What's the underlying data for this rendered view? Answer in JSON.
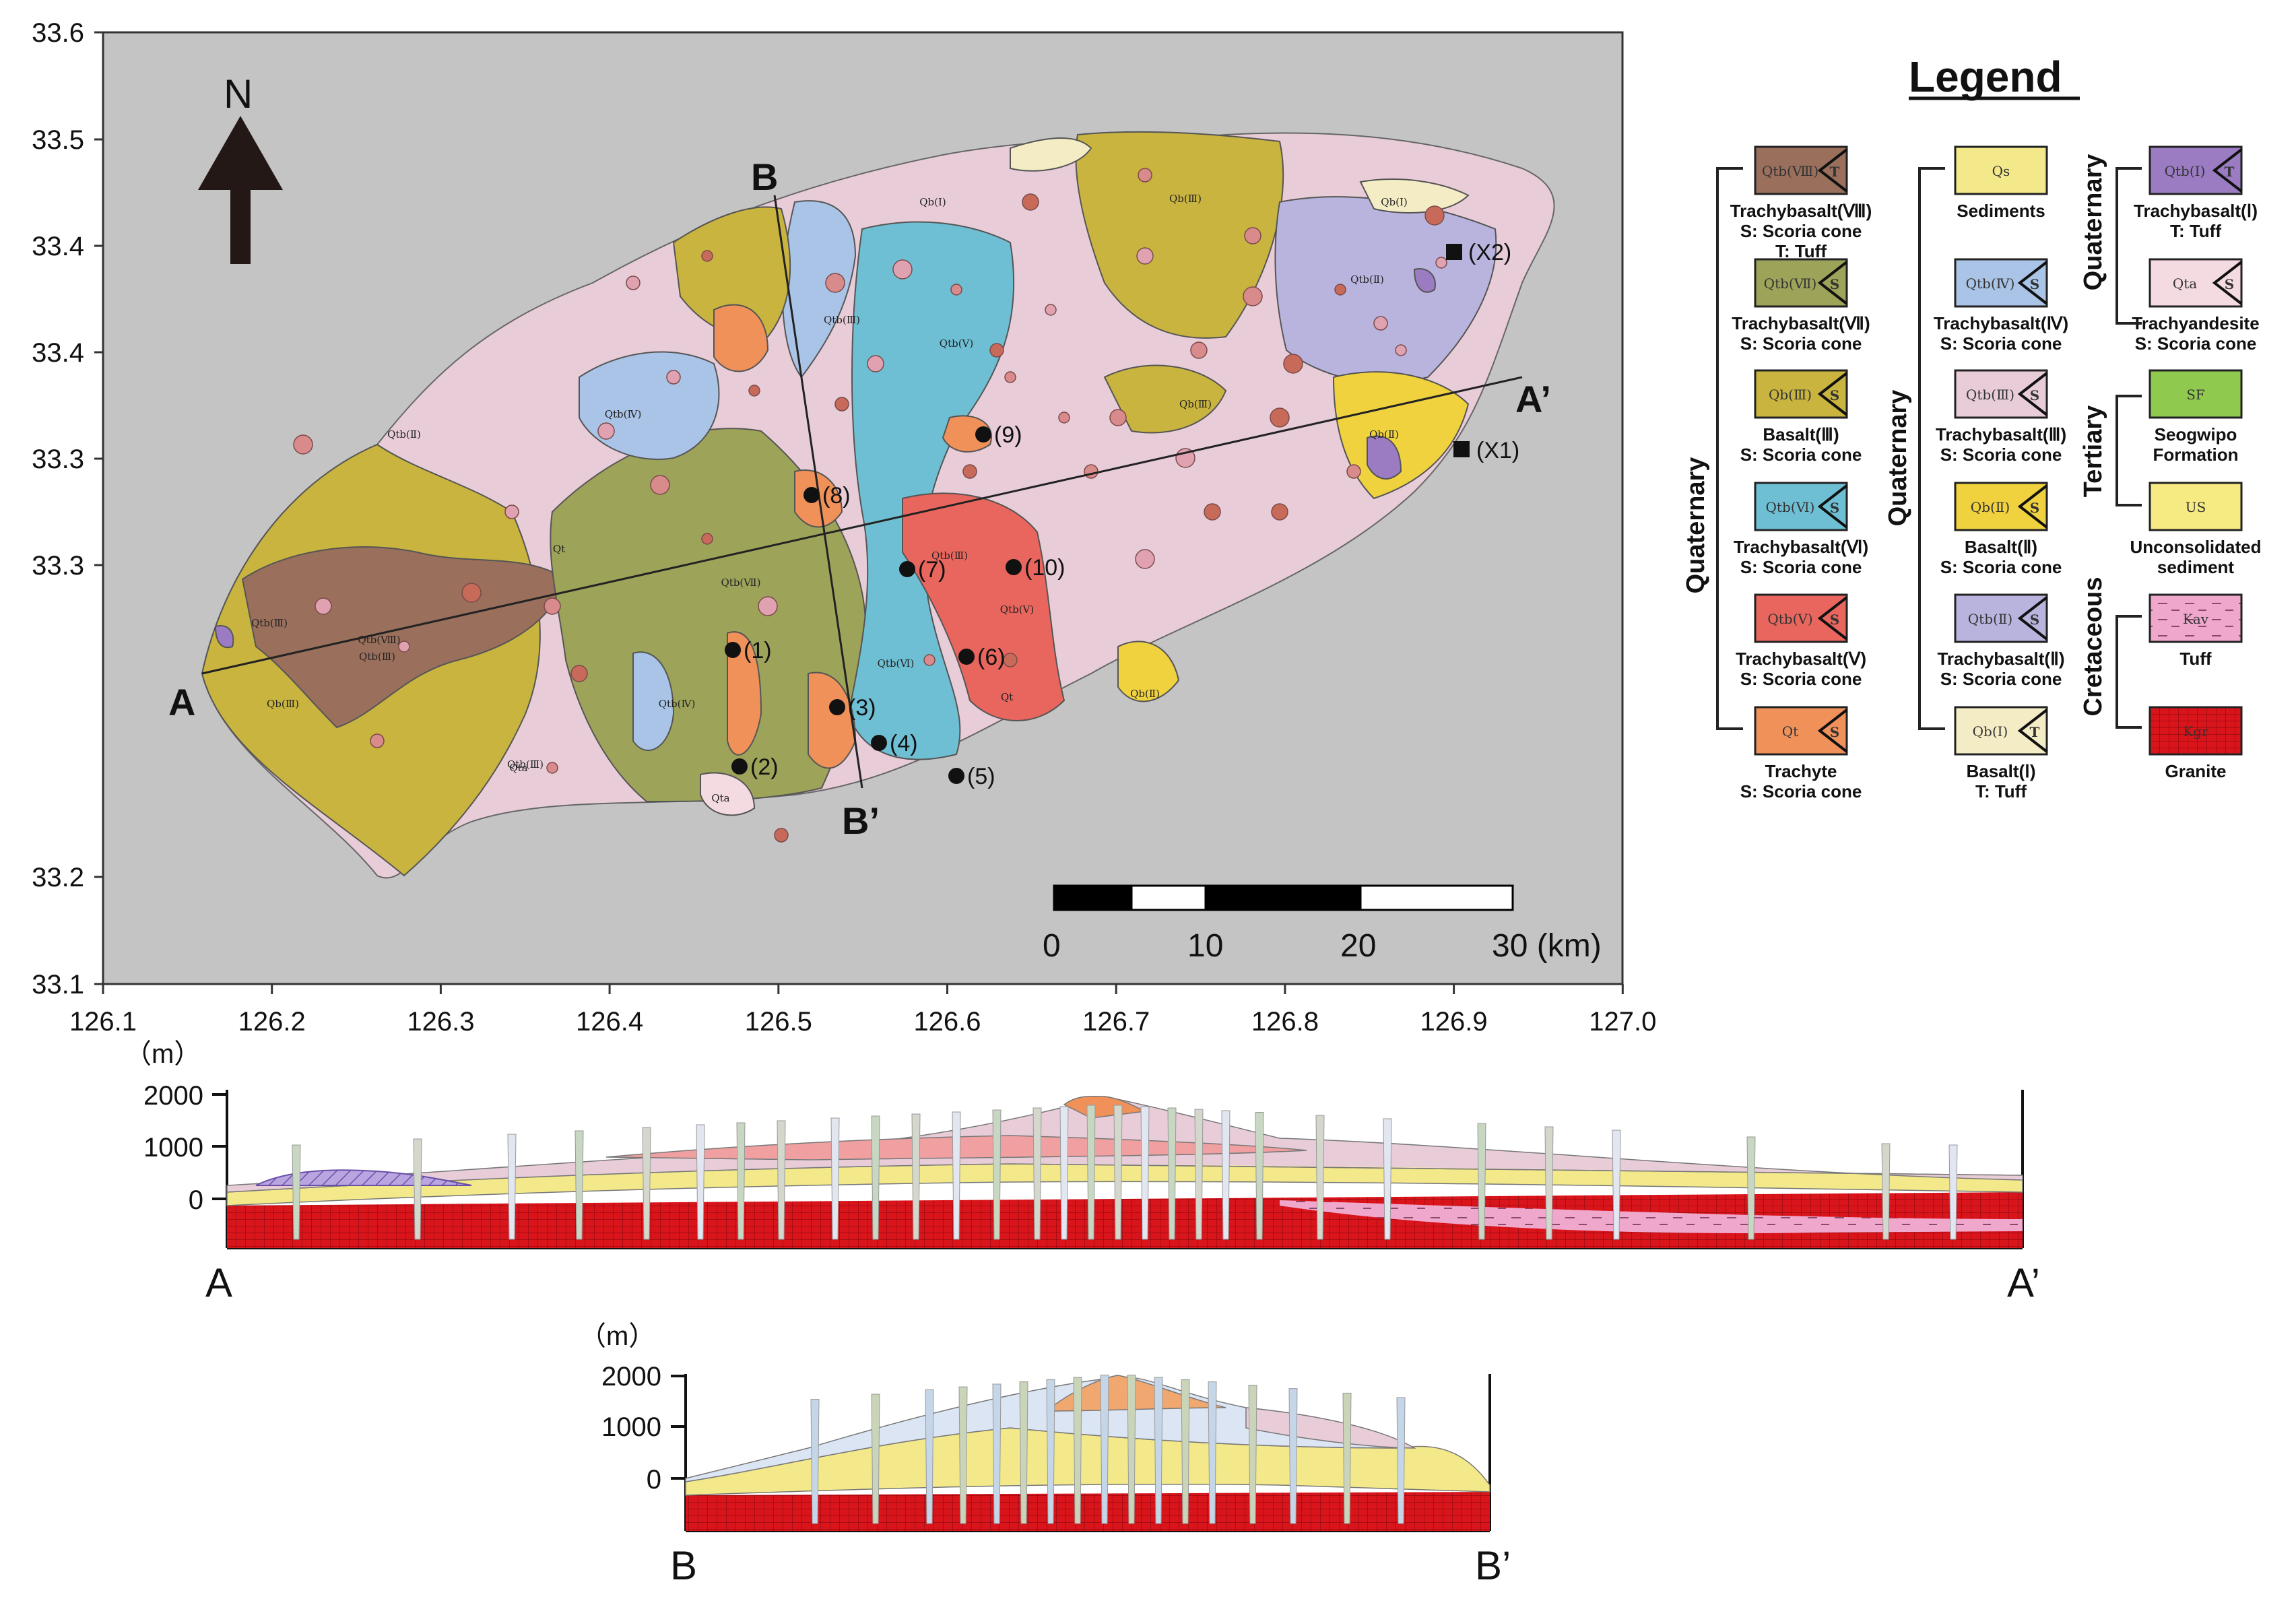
{
  "map": {
    "x_ticks": [
      "126.1",
      "126.2",
      "126.3",
      "126.4",
      "126.5",
      "126.6",
      "126.7",
      "126.8",
      "126.9",
      "127.0"
    ],
    "y_ticks": [
      "33.6",
      "33.5",
      "33.4",
      "33.4",
      "33.3",
      "33.3",
      "33.2",
      "33.1"
    ],
    "north_label": "N",
    "section_a": "A",
    "section_a_prime": "A’",
    "section_b": "B",
    "section_b_prime": "B’",
    "scale_labels": [
      "0",
      "10",
      "20",
      "30 (km)"
    ],
    "sample_points": [
      "(1)",
      "(2)",
      "(3)",
      "(4)",
      "(5)",
      "(6)",
      "(7)",
      "(8)",
      "(9)",
      "(10)"
    ],
    "stations": [
      "(X1)",
      "(X2)"
    ],
    "unit_labels": [
      "Qtb(Ⅷ)",
      "Qtb(Ⅲ)",
      "Qtb(Ⅲ)",
      "Qb(Ⅲ)",
      "Qtb(Ⅲ)",
      "Qb(Ⅲ)",
      "Qt",
      "Qtb(Ⅵ)",
      "Qtb(Ⅴ)",
      "Qtb(Ⅶ)",
      "Qtb(Ⅲ)",
      "Qtb(Ⅱ)",
      "Qb(Ⅱ)",
      "Qb(Ⅱ)",
      "Qtb(Ⅲ)",
      "Qta",
      "Qb(Ⅰ)",
      "Qb(Ⅰ)",
      "Qb(Ⅲ)",
      "Qtb(Ⅳ)",
      "Qtb(Ⅱ)",
      "Qtb(Ⅴ)",
      "Qtb(Ⅳ)",
      "Qta",
      "Qt"
    ]
  },
  "sections": {
    "unit": "（m）",
    "y_ticks": [
      "2000",
      "1000",
      "0"
    ],
    "aa_left": "A",
    "aa_right": "A’",
    "bb_left": "B",
    "bb_right": "B’"
  },
  "legend": {
    "title": "Legend",
    "groups": {
      "quaternary_left": "Quaternary",
      "quaternary_mid": "Quaternary",
      "quaternary_right": "Quaternary",
      "tertiary": "Tertiary",
      "cretaceous": "Cretaceous"
    },
    "items": [
      {
        "code": "Qtb(Ⅷ)",
        "line1": "Trachybasalt(Ⅷ)",
        "line2": "S: Scoria cone",
        "line3": "T: Tuff",
        "color": "#9a6f5c",
        "marker": "T"
      },
      {
        "code": "Qtb(Ⅶ)",
        "line1": "Trachybasalt(Ⅶ)",
        "line2": "S: Scoria cone",
        "line3": "",
        "color": "#9ea35a",
        "marker": "S"
      },
      {
        "code": "Qb(Ⅲ)",
        "line1": "Basalt(Ⅲ)",
        "line2": "S: Scoria cone",
        "line3": "",
        "color": "#c9b43f",
        "marker": "S"
      },
      {
        "code": "Qtb(Ⅵ)",
        "line1": "Trachybasalt(Ⅵ)",
        "line2": "S: Scoria cone",
        "line3": "",
        "color": "#6fbfd4",
        "marker": "S"
      },
      {
        "code": "Qtb(Ⅴ)",
        "line1": "Trachybasalt(Ⅴ)",
        "line2": "S: Scoria cone",
        "line3": "",
        "color": "#e8665d",
        "marker": "S"
      },
      {
        "code": "Qt",
        "line1": "Trachyte",
        "line2": "S: Scoria cone",
        "line3": "",
        "color": "#f0915a",
        "marker": "S"
      },
      {
        "code": "Qs",
        "line1": "Sediments",
        "line2": "",
        "line3": "",
        "color": "#f3e98a",
        "marker": ""
      },
      {
        "code": "Qtb(Ⅳ)",
        "line1": "Trachybasalt(Ⅳ)",
        "line2": "S: Scoria cone",
        "line3": "",
        "color": "#a9c4e6",
        "marker": "S"
      },
      {
        "code": "Qtb(Ⅲ)",
        "line1": "Trachybasalt(Ⅲ)",
        "line2": "S: Scoria cone",
        "line3": "",
        "color": "#e8cdd9",
        "marker": "S"
      },
      {
        "code": "Qb(Ⅱ)",
        "line1": "Basalt(Ⅱ)",
        "line2": "S: Scoria cone",
        "line3": "",
        "color": "#f0d23f",
        "marker": "S"
      },
      {
        "code": "Qtb(Ⅱ)",
        "line1": "Trachybasalt(Ⅱ)",
        "line2": "S: Scoria cone",
        "line3": "",
        "color": "#b9b4de",
        "marker": "S"
      },
      {
        "code": "Qb(Ⅰ)",
        "line1": "Basalt(Ⅰ)",
        "line2": "T: Tuff",
        "line3": "",
        "color": "#f4ecc4",
        "marker": "T"
      },
      {
        "code": "Qtb(Ⅰ)",
        "line1": "Trachybasalt(Ⅰ)",
        "line2": "T: Tuff",
        "line3": "",
        "color": "#9b7cc3",
        "marker": "T"
      },
      {
        "code": "Qta",
        "line1": "Trachyandesite",
        "line2": "S: Scoria cone",
        "line3": "",
        "color": "#f4dbe2",
        "marker": "S"
      },
      {
        "code": "SF",
        "line1": "Seogwipo",
        "line2": "Formation",
        "line3": "",
        "color": "#8fca4e",
        "marker": ""
      },
      {
        "code": "US",
        "line1": "Unconsolidated",
        "line2": "sediment",
        "line3": "",
        "color": "#f6ea82",
        "marker": ""
      },
      {
        "code": "Kav",
        "line1": "Tuff",
        "line2": "",
        "line3": "",
        "color": "#f0a7cc",
        "marker": ""
      },
      {
        "code": "Kgr",
        "line1": "Granite",
        "line2": "",
        "line3": "",
        "color": "#d9141b",
        "marker": ""
      }
    ]
  }
}
